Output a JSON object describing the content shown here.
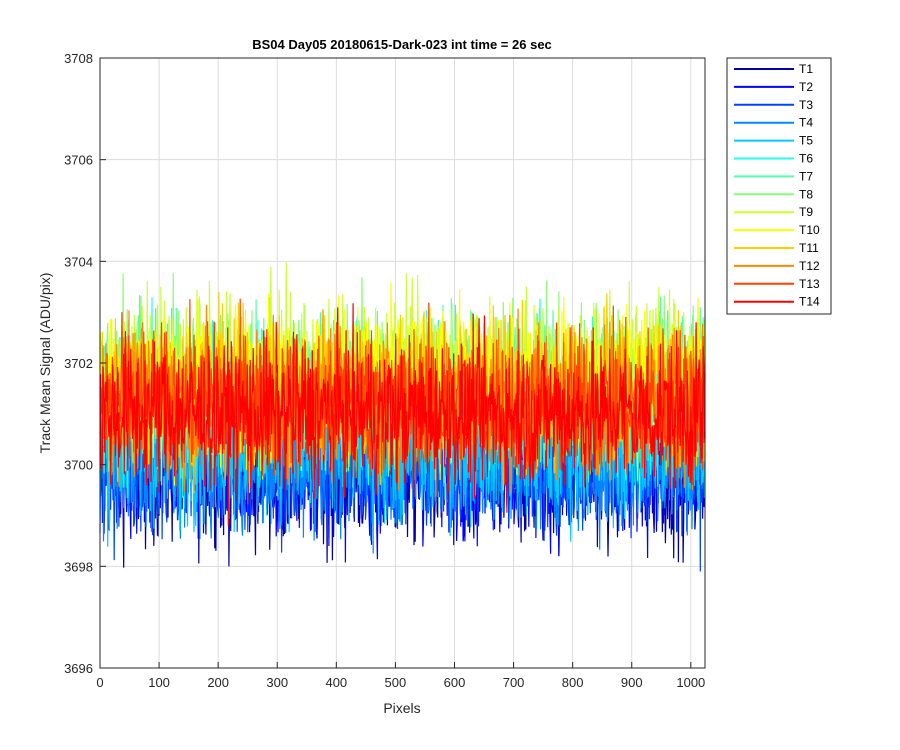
{
  "chart_data": {
    "type": "line",
    "title": "BS04 Day05 20180615-Dark-023 int time = 26 sec",
    "xlabel": "Pixels",
    "ylabel": "Track Mean Signal (ADU/pix)",
    "xlim": [
      0,
      1024
    ],
    "ylim": [
      3696,
      3708
    ],
    "xticks": [
      0,
      100,
      200,
      300,
      400,
      500,
      600,
      700,
      800,
      900,
      1000
    ],
    "yticks": [
      3696,
      3698,
      3700,
      3702,
      3704,
      3706,
      3708
    ],
    "grid": true,
    "legend_position": "outside-top-right",
    "n_points": 1024,
    "series": [
      {
        "name": "T1",
        "color": "#0000aa",
        "mean": 3699.9
      },
      {
        "name": "T2",
        "color": "#0000ff",
        "mean": 3700.0
      },
      {
        "name": "T3",
        "color": "#0044ff",
        "mean": 3700.1
      },
      {
        "name": "T4",
        "color": "#0088ff",
        "mean": 3700.2
      },
      {
        "name": "T5",
        "color": "#00ccff",
        "mean": 3700.4
      },
      {
        "name": "T6",
        "color": "#22ffee",
        "mean": 3701.3
      },
      {
        "name": "T7",
        "color": "#55ffaa",
        "mean": 3701.5
      },
      {
        "name": "T8",
        "color": "#88ff77",
        "mean": 3701.7
      },
      {
        "name": "T9",
        "color": "#ccff33",
        "mean": 3701.8
      },
      {
        "name": "T10",
        "color": "#ffff00",
        "mean": 3701.6
      },
      {
        "name": "T11",
        "color": "#ffcc00",
        "mean": 3701.4
      },
      {
        "name": "T12",
        "color": "#ff8800",
        "mean": 3701.3
      },
      {
        "name": "T13",
        "color": "#ff4400",
        "mean": 3701.2
      },
      {
        "name": "T14",
        "color": "#ff0000",
        "mean": 3701.0
      }
    ]
  }
}
